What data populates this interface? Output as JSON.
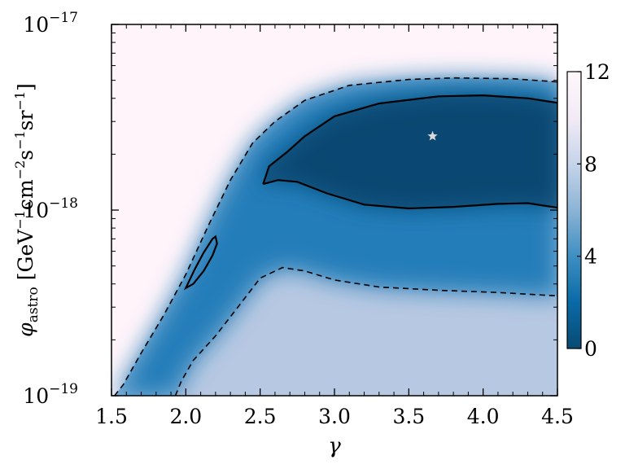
{
  "chart_data": {
    "type": "heatmap",
    "title": "",
    "xlabel": "γ",
    "ylabel": {
      "symbol": "φ",
      "subscript": "astro",
      "unit_open": "[GeV",
      "unit_e1": "−1",
      "unit_cm": "cm",
      "unit_e2": "−2",
      "unit_s": "s",
      "unit_e3": "−1",
      "unit_sr": "sr",
      "unit_e4": "−1",
      "unit_close": "]"
    },
    "x_range": [
      1.5,
      4.5
    ],
    "y_range": [
      1e-19,
      1e-17
    ],
    "y_scale": "log",
    "x_ticks": [
      "1.5",
      "2.0",
      "2.5",
      "3.0",
      "3.5",
      "4.0",
      "4.5"
    ],
    "x_tick_values": [
      1.5,
      2.0,
      2.5,
      3.0,
      3.5,
      4.0,
      4.5
    ],
    "y_ticks": [
      {
        "value": 1e-19,
        "base": "10",
        "exp": "−19"
      },
      {
        "value": 1e-18,
        "base": "10",
        "exp": "−18"
      },
      {
        "value": 1e-17,
        "base": "10",
        "exp": "−17"
      }
    ],
    "best_fit": {
      "gamma": 3.66,
      "phi": 2.5e-18,
      "marker": "star"
    },
    "colorbar": {
      "range": [
        0,
        12
      ],
      "ticks": [
        "0",
        "4",
        "8",
        "12"
      ],
      "tick_values": [
        0,
        4,
        8,
        12
      ],
      "colors": [
        "#084a73",
        "#0a6aa6",
        "#3e8fc2",
        "#8cb4d6",
        "#c6d4ea",
        "#f2ebf6",
        "#fff7fb"
      ]
    },
    "contours": [
      {
        "style": "solid",
        "segments": [
          [
            [
              2.52,
              1.38e-18
            ],
            [
              2.56,
              1.72e-18
            ],
            [
              2.68,
              2.05e-18
            ],
            [
              2.8,
              2.5e-18
            ],
            [
              3.0,
              3.2e-18
            ],
            [
              3.3,
              3.75e-18
            ],
            [
              3.7,
              4.1e-18
            ],
            [
              4.0,
              4.15e-18
            ],
            [
              4.3,
              4e-18
            ],
            [
              4.5,
              3.78e-18
            ]
          ],
          [
            [
              2.52,
              1.38e-18
            ],
            [
              2.62,
              1.45e-18
            ],
            [
              2.75,
              1.42e-18
            ],
            [
              2.95,
              1.23e-18
            ],
            [
              3.2,
              1.07e-18
            ],
            [
              3.5,
              1.02e-18
            ],
            [
              3.8,
              1.04e-18
            ],
            [
              4.1,
              1.08e-18
            ],
            [
              4.3,
              1.09e-18
            ],
            [
              4.5,
              1.03e-18
            ]
          ]
        ]
      },
      {
        "style": "solid",
        "closed": true,
        "segments": [
          [
            [
              2.0,
              3.8e-19
            ],
            [
              2.06,
              4.8e-19
            ],
            [
              2.12,
              5.9e-19
            ],
            [
              2.18,
              7e-19
            ],
            [
              2.2,
              7.2e-19
            ],
            [
              2.21,
              6.6e-19
            ],
            [
              2.18,
              5.7e-19
            ],
            [
              2.12,
              4.7e-19
            ],
            [
              2.05,
              4e-19
            ],
            [
              2.0,
              3.8e-19
            ]
          ]
        ]
      },
      {
        "style": "dashed",
        "segments": [
          [
            [
              1.52,
              1e-19
            ],
            [
              1.58,
              1.15e-19
            ],
            [
              1.7,
              1.7e-19
            ],
            [
              1.85,
              2.7e-19
            ],
            [
              2.0,
              4.5e-19
            ],
            [
              2.15,
              8.2e-19
            ],
            [
              2.3,
              1.45e-18
            ],
            [
              2.45,
              2.3e-18
            ],
            [
              2.6,
              3e-18
            ],
            [
              2.8,
              3.9e-18
            ],
            [
              3.1,
              4.7e-18
            ],
            [
              3.5,
              5.05e-18
            ],
            [
              3.8,
              5.15e-18
            ],
            [
              4.2,
              5.1e-18
            ],
            [
              4.5,
              4.9e-18
            ]
          ],
          [
            [
              1.93,
              1e-19
            ],
            [
              1.97,
              1.2e-19
            ],
            [
              2.05,
              1.55e-19
            ],
            [
              2.2,
              2.1e-19
            ],
            [
              2.35,
              3e-19
            ],
            [
              2.5,
              4.3e-19
            ],
            [
              2.65,
              4.9e-19
            ],
            [
              2.8,
              4.7e-19
            ],
            [
              3.0,
              4.2e-19
            ],
            [
              3.3,
              3.85e-19
            ],
            [
              3.7,
              3.7e-19
            ],
            [
              4.1,
              3.6e-19
            ],
            [
              4.5,
              3.45e-19
            ]
          ]
        ]
      }
    ]
  }
}
